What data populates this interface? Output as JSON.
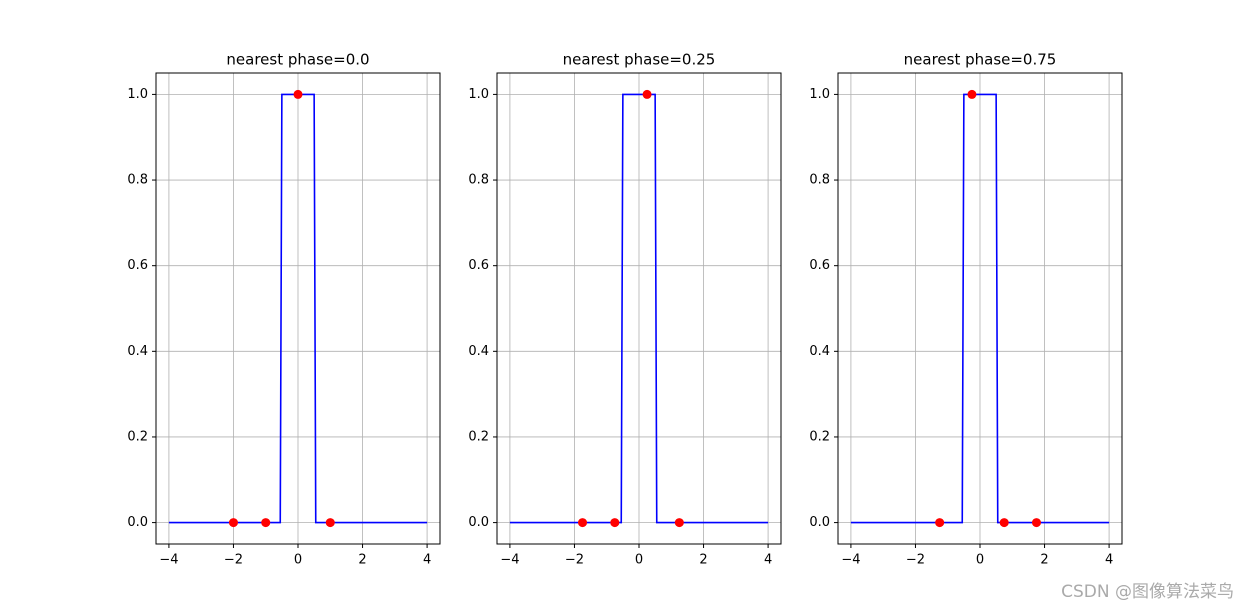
{
  "chart_data": [
    {
      "type": "line",
      "title": "nearest phase=0.0",
      "grid": true,
      "xlim": [
        -4.4,
        4.4
      ],
      "ylim": [
        -0.05,
        1.05
      ],
      "xticks": [
        {
          "value": -4,
          "label": "−4"
        },
        {
          "value": -2,
          "label": "−2"
        },
        0,
        2,
        4
      ],
      "yticks": [
        {
          "value": 0,
          "label": "0.0"
        },
        0.2,
        0.4,
        0.6,
        0.8,
        {
          "value": 1,
          "label": "1.0"
        }
      ],
      "series": [
        {
          "type": "line",
          "color": "#0000ff",
          "x": [
            -4,
            -0.55,
            -0.5,
            0.5,
            0.55,
            4
          ],
          "values": [
            0,
            0,
            1,
            1,
            0,
            0
          ]
        },
        {
          "type": "scatter",
          "color": "#ff0000",
          "x": [
            -2,
            -1,
            0,
            1
          ],
          "values": [
            0,
            0,
            1,
            0
          ]
        }
      ]
    },
    {
      "type": "line",
      "title": "nearest phase=0.25",
      "grid": true,
      "xlim": [
        -4.4,
        4.4
      ],
      "ylim": [
        -0.05,
        1.05
      ],
      "xticks": [
        {
          "value": -4,
          "label": "−4"
        },
        {
          "value": -2,
          "label": "−2"
        },
        0,
        2,
        4
      ],
      "yticks": [
        {
          "value": 0,
          "label": "0.0"
        },
        0.2,
        0.4,
        0.6,
        0.8,
        {
          "value": 1,
          "label": "1.0"
        }
      ],
      "series": [
        {
          "type": "line",
          "color": "#0000ff",
          "x": [
            -4,
            -0.55,
            -0.5,
            0.5,
            0.55,
            4
          ],
          "values": [
            0,
            0,
            1,
            1,
            0,
            0
          ]
        },
        {
          "type": "scatter",
          "color": "#ff0000",
          "x": [
            -1.75,
            -0.75,
            0.25,
            1.25
          ],
          "values": [
            0,
            0,
            1,
            0
          ]
        }
      ]
    },
    {
      "type": "line",
      "title": "nearest phase=0.75",
      "grid": true,
      "xlim": [
        -4.4,
        4.4
      ],
      "ylim": [
        -0.05,
        1.05
      ],
      "xticks": [
        {
          "value": -4,
          "label": "−4"
        },
        {
          "value": -2,
          "label": "−2"
        },
        0,
        2,
        4
      ],
      "yticks": [
        {
          "value": 0,
          "label": "0.0"
        },
        0.2,
        0.4,
        0.6,
        0.8,
        {
          "value": 1,
          "label": "1.0"
        }
      ],
      "series": [
        {
          "type": "line",
          "color": "#0000ff",
          "x": [
            -4,
            -0.55,
            -0.5,
            0.5,
            0.55,
            4
          ],
          "values": [
            0,
            0,
            1,
            1,
            0,
            0
          ]
        },
        {
          "type": "scatter",
          "color": "#ff0000",
          "x": [
            -1.25,
            -0.25,
            0.75,
            1.75
          ],
          "values": [
            0,
            1,
            0,
            0
          ]
        }
      ]
    }
  ],
  "watermark": "CSDN @图像算法菜鸟"
}
